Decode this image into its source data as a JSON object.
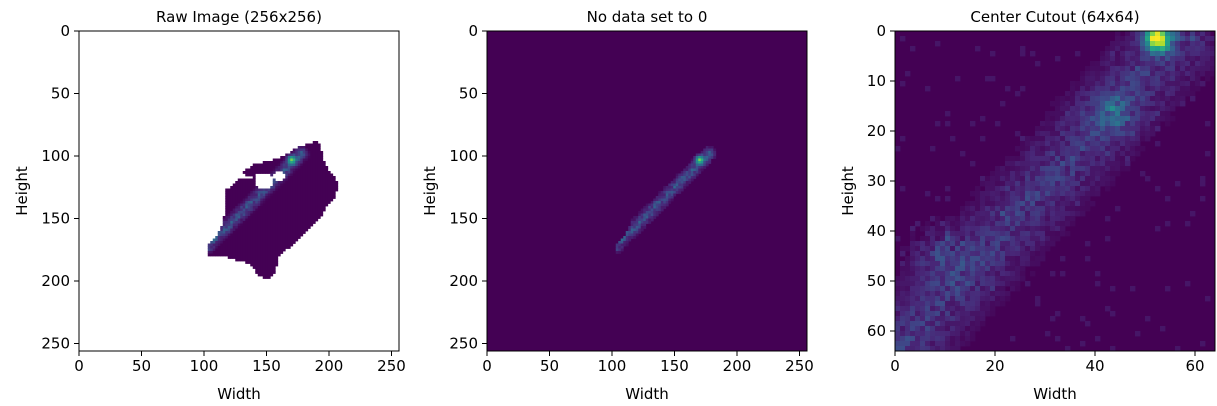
{
  "colors": {
    "background": "#440154",
    "dark": "#482777",
    "mid": "#31688e",
    "teal": "#26a784",
    "green": "#6ece58",
    "yellow": "#fde725"
  },
  "chart_data": [
    {
      "type": "heatmap",
      "title": "Raw Image (256x256)",
      "xlabel": "Width",
      "ylabel": "Height",
      "xlim": [
        0,
        256
      ],
      "ylim": [
        256,
        0
      ],
      "xticks": [
        0,
        50,
        100,
        150,
        200,
        250
      ],
      "yticks": [
        0,
        50,
        100,
        150,
        200,
        250
      ],
      "nodata_color": "white",
      "content": "Precipitation field over the Netherlands; pixels outside the country are no-data (white). Intensity band runs from about (105,170) to (175,100).",
      "peak": {
        "x": 170,
        "y": 103
      }
    },
    {
      "type": "heatmap",
      "title": "No data set to 0",
      "xlabel": "Width",
      "ylabel": "Height",
      "xlim": [
        0,
        256
      ],
      "ylim": [
        256,
        0
      ],
      "xticks": [
        0,
        50,
        100,
        150,
        200,
        250
      ],
      "yticks": [
        0,
        50,
        100,
        150,
        200,
        250
      ],
      "content": "Same field with no-data pixels replaced by 0; band from about (100,172) to (178,98).",
      "peak": {
        "x": 170,
        "y": 103
      }
    },
    {
      "type": "heatmap",
      "title": "Center Cutout (64x64)",
      "xlabel": "Width",
      "ylabel": "Height",
      "xlim": [
        0,
        64
      ],
      "ylim": [
        64,
        0
      ],
      "xticks": [
        0,
        20,
        40,
        60
      ],
      "yticks": [
        0,
        10,
        20,
        30,
        40,
        50,
        60
      ],
      "content": "64x64 center crop; diagonal band from lower-left (0,64) to upper-right (58,0) with peak near (52,1).",
      "peak": {
        "x": 52,
        "y": 1
      }
    }
  ]
}
